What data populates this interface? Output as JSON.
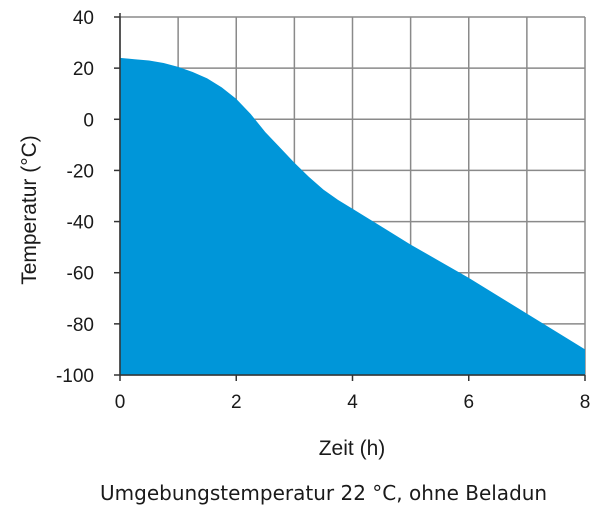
{
  "chart_data": {
    "type": "area",
    "xlabel": "Zeit (h)",
    "ylabel": "Temperatur (°C)",
    "xlim": [
      0,
      8
    ],
    "ylim": [
      -100,
      40
    ],
    "x_ticks": [
      "0",
      "2",
      "4",
      "6",
      "8"
    ],
    "y_ticks": [
      "40",
      "20",
      "0",
      "-20",
      "-40",
      "-60",
      "-80",
      "-100"
    ],
    "grid": true,
    "fill_color": "#0096d9",
    "series": [
      {
        "x": [
          0,
          0.25,
          0.5,
          0.75,
          1.0,
          1.25,
          1.5,
          1.75,
          2.0,
          2.25,
          2.5,
          2.75,
          3.0,
          3.25,
          3.5,
          3.75,
          4.0,
          4.5,
          5.0,
          5.5,
          6.0,
          6.5,
          7.0,
          7.5,
          8.0
        ],
        "y": [
          24,
          23.5,
          23,
          22,
          20.5,
          18.5,
          16,
          12.5,
          8,
          2,
          -5,
          -11,
          -17,
          -22.5,
          -27.5,
          -31.5,
          -35,
          -42,
          -49,
          -55.5,
          -62,
          -69,
          -76,
          -83,
          -90
        ]
      }
    ]
  },
  "caption": "Umgebungstemperatur 22 °C, ohne Beladun"
}
